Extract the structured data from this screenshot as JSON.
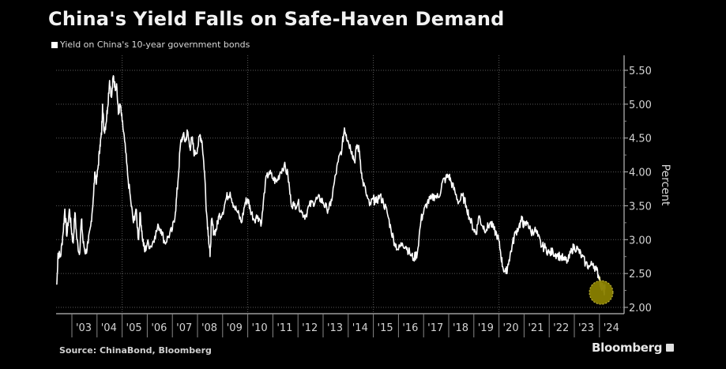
{
  "title": "China's Yield Falls on Safe-Haven Demand",
  "source": "Source: ChinaBond, Bloomberg",
  "brand": "Bloomberg",
  "colors": {
    "background": "#000000",
    "line": "#ffffff",
    "highlight": "#8a8000",
    "highlight_border": "#d4c84a",
    "grid": "#5a5a5a"
  },
  "chart_data": {
    "type": "line",
    "title": "China's Yield Falls on Safe-Haven Demand",
    "legend": [
      "Yield on China's 10-year government bonds"
    ],
    "legend_placement": "top-left",
    "xlabel": "",
    "ylabel": "Percent",
    "ylim": [
      2.0,
      5.5
    ],
    "xlim": [
      2002.4,
      2024.9
    ],
    "yticks": [
      2.0,
      2.5,
      3.0,
      3.5,
      4.0,
      4.5,
      5.0,
      5.5
    ],
    "ytick_labels": [
      "2.00",
      "2.50",
      "3.00",
      "3.50",
      "4.00",
      "4.50",
      "5.00",
      "5.50"
    ],
    "xticks": [
      2003,
      2004,
      2005,
      2006,
      2007,
      2008,
      2009,
      2010,
      2011,
      2012,
      2013,
      2014,
      2015,
      2016,
      2017,
      2018,
      2019,
      2020,
      2021,
      2022,
      2023,
      2024
    ],
    "xtick_labels": [
      "'03",
      "'04",
      "'05",
      "'06",
      "'07",
      "'08",
      "'09",
      "'10",
      "'11",
      "'12",
      "'13",
      "'14",
      "'15",
      "'16",
      "'17",
      "'18",
      "'19",
      "'20",
      "'21",
      "'22",
      "'23",
      "'24"
    ],
    "grid": true,
    "highlight": {
      "x": 2024.1,
      "y": 2.22,
      "description": "latest reading circled"
    },
    "series": [
      {
        "name": "Yield on China's 10-year government bonds",
        "points": [
          [
            2002.4,
            2.34
          ],
          [
            2002.45,
            2.8
          ],
          [
            2002.55,
            2.75
          ],
          [
            2002.65,
            3.1
          ],
          [
            2002.72,
            3.45
          ],
          [
            2002.8,
            3.05
          ],
          [
            2002.9,
            3.45
          ],
          [
            2002.98,
            3.15
          ],
          [
            2003.05,
            2.95
          ],
          [
            2003.12,
            3.4
          ],
          [
            2003.2,
            3.0
          ],
          [
            2003.3,
            2.78
          ],
          [
            2003.38,
            3.3
          ],
          [
            2003.45,
            2.95
          ],
          [
            2003.55,
            2.8
          ],
          [
            2003.65,
            2.95
          ],
          [
            2003.75,
            3.2
          ],
          [
            2003.85,
            3.6
          ],
          [
            2003.92,
            4.0
          ],
          [
            2003.98,
            3.85
          ],
          [
            2004.05,
            4.1
          ],
          [
            2004.12,
            4.4
          ],
          [
            2004.18,
            4.55
          ],
          [
            2004.22,
            5.0
          ],
          [
            2004.28,
            4.6
          ],
          [
            2004.35,
            4.7
          ],
          [
            2004.42,
            4.95
          ],
          [
            2004.5,
            5.35
          ],
          [
            2004.58,
            5.1
          ],
          [
            2004.65,
            5.42
          ],
          [
            2004.72,
            5.25
          ],
          [
            2004.78,
            5.3
          ],
          [
            2004.85,
            4.85
          ],
          [
            2004.92,
            5.0
          ],
          [
            2005.0,
            4.75
          ],
          [
            2005.1,
            4.45
          ],
          [
            2005.22,
            3.95
          ],
          [
            2005.35,
            3.55
          ],
          [
            2005.45,
            3.25
          ],
          [
            2005.55,
            3.45
          ],
          [
            2005.65,
            3.0
          ],
          [
            2005.72,
            3.4
          ],
          [
            2005.8,
            3.05
          ],
          [
            2005.9,
            2.82
          ],
          [
            2006.0,
            2.95
          ],
          [
            2006.15,
            2.9
          ],
          [
            2006.3,
            3.05
          ],
          [
            2006.45,
            3.2
          ],
          [
            2006.55,
            3.15
          ],
          [
            2006.7,
            2.95
          ],
          [
            2006.85,
            3.05
          ],
          [
            2007.0,
            3.15
          ],
          [
            2007.12,
            3.4
          ],
          [
            2007.22,
            3.85
          ],
          [
            2007.32,
            4.4
          ],
          [
            2007.42,
            4.55
          ],
          [
            2007.52,
            4.45
          ],
          [
            2007.6,
            4.6
          ],
          [
            2007.7,
            4.35
          ],
          [
            2007.78,
            4.5
          ],
          [
            2007.88,
            4.25
          ],
          [
            2008.0,
            4.35
          ],
          [
            2008.1,
            4.55
          ],
          [
            2008.18,
            4.45
          ],
          [
            2008.28,
            4.0
          ],
          [
            2008.36,
            3.4
          ],
          [
            2008.44,
            3.05
          ],
          [
            2008.5,
            2.75
          ],
          [
            2008.56,
            3.3
          ],
          [
            2008.65,
            3.1
          ],
          [
            2008.75,
            3.15
          ],
          [
            2008.85,
            3.35
          ],
          [
            2009.0,
            3.4
          ],
          [
            2009.15,
            3.62
          ],
          [
            2009.3,
            3.7
          ],
          [
            2009.45,
            3.5
          ],
          [
            2009.6,
            3.4
          ],
          [
            2009.75,
            3.25
          ],
          [
            2009.9,
            3.55
          ],
          [
            2010.0,
            3.6
          ],
          [
            2010.1,
            3.45
          ],
          [
            2010.25,
            3.3
          ],
          [
            2010.4,
            3.35
          ],
          [
            2010.55,
            3.25
          ],
          [
            2010.7,
            3.85
          ],
          [
            2010.85,
            4.0
          ],
          [
            2011.0,
            3.9
          ],
          [
            2011.15,
            3.85
          ],
          [
            2011.3,
            4.0
          ],
          [
            2011.45,
            4.1
          ],
          [
            2011.6,
            3.95
          ],
          [
            2011.72,
            3.55
          ],
          [
            2011.85,
            3.5
          ],
          [
            2012.0,
            3.55
          ],
          [
            2012.15,
            3.4
          ],
          [
            2012.3,
            3.35
          ],
          [
            2012.45,
            3.5
          ],
          [
            2012.6,
            3.55
          ],
          [
            2012.75,
            3.6
          ],
          [
            2012.9,
            3.6
          ],
          [
            2013.0,
            3.55
          ],
          [
            2013.15,
            3.45
          ],
          [
            2013.3,
            3.5
          ],
          [
            2013.45,
            3.85
          ],
          [
            2013.6,
            4.15
          ],
          [
            2013.75,
            4.35
          ],
          [
            2013.85,
            4.65
          ],
          [
            2013.92,
            4.55
          ],
          [
            2014.0,
            4.45
          ],
          [
            2014.15,
            4.3
          ],
          [
            2014.25,
            4.15
          ],
          [
            2014.35,
            4.4
          ],
          [
            2014.45,
            4.3
          ],
          [
            2014.55,
            3.9
          ],
          [
            2014.7,
            3.7
          ],
          [
            2014.85,
            3.5
          ],
          [
            2015.0,
            3.6
          ],
          [
            2015.1,
            3.55
          ],
          [
            2015.25,
            3.65
          ],
          [
            2015.4,
            3.55
          ],
          [
            2015.55,
            3.4
          ],
          [
            2015.7,
            3.15
          ],
          [
            2015.85,
            2.95
          ],
          [
            2016.0,
            2.85
          ],
          [
            2016.15,
            2.95
          ],
          [
            2016.3,
            2.9
          ],
          [
            2016.45,
            2.8
          ],
          [
            2016.6,
            2.72
          ],
          [
            2016.75,
            2.8
          ],
          [
            2016.9,
            3.3
          ],
          [
            2017.0,
            3.4
          ],
          [
            2017.15,
            3.55
          ],
          [
            2017.3,
            3.6
          ],
          [
            2017.45,
            3.65
          ],
          [
            2017.6,
            3.62
          ],
          [
            2017.75,
            3.85
          ],
          [
            2017.88,
            3.9
          ],
          [
            2018.0,
            3.95
          ],
          [
            2018.1,
            3.85
          ],
          [
            2018.25,
            3.7
          ],
          [
            2018.4,
            3.55
          ],
          [
            2018.55,
            3.65
          ],
          [
            2018.7,
            3.5
          ],
          [
            2018.85,
            3.3
          ],
          [
            2019.0,
            3.15
          ],
          [
            2019.1,
            3.1
          ],
          [
            2019.2,
            3.35
          ],
          [
            2019.35,
            3.2
          ],
          [
            2019.5,
            3.15
          ],
          [
            2019.65,
            3.25
          ],
          [
            2019.8,
            3.15
          ],
          [
            2019.95,
            3.05
          ],
          [
            2020.05,
            2.85
          ],
          [
            2020.15,
            2.6
          ],
          [
            2020.28,
            2.5
          ],
          [
            2020.4,
            2.7
          ],
          [
            2020.52,
            2.9
          ],
          [
            2020.65,
            3.1
          ],
          [
            2020.8,
            3.2
          ],
          [
            2020.92,
            3.3
          ],
          [
            2021.0,
            3.2
          ],
          [
            2021.15,
            3.25
          ],
          [
            2021.28,
            3.1
          ],
          [
            2021.42,
            3.15
          ],
          [
            2021.55,
            3.05
          ],
          [
            2021.7,
            2.9
          ],
          [
            2021.85,
            2.88
          ],
          [
            2022.0,
            2.8
          ],
          [
            2022.15,
            2.82
          ],
          [
            2022.3,
            2.78
          ],
          [
            2022.45,
            2.75
          ],
          [
            2022.6,
            2.7
          ],
          [
            2022.75,
            2.68
          ],
          [
            2022.9,
            2.85
          ],
          [
            2023.0,
            2.9
          ],
          [
            2023.15,
            2.85
          ],
          [
            2023.3,
            2.75
          ],
          [
            2023.45,
            2.65
          ],
          [
            2023.6,
            2.6
          ],
          [
            2023.75,
            2.65
          ],
          [
            2023.88,
            2.55
          ],
          [
            2024.0,
            2.45
          ],
          [
            2024.08,
            2.28
          ],
          [
            2024.12,
            2.35
          ],
          [
            2024.18,
            2.22
          ],
          [
            2024.22,
            2.28
          ]
        ]
      }
    ]
  }
}
